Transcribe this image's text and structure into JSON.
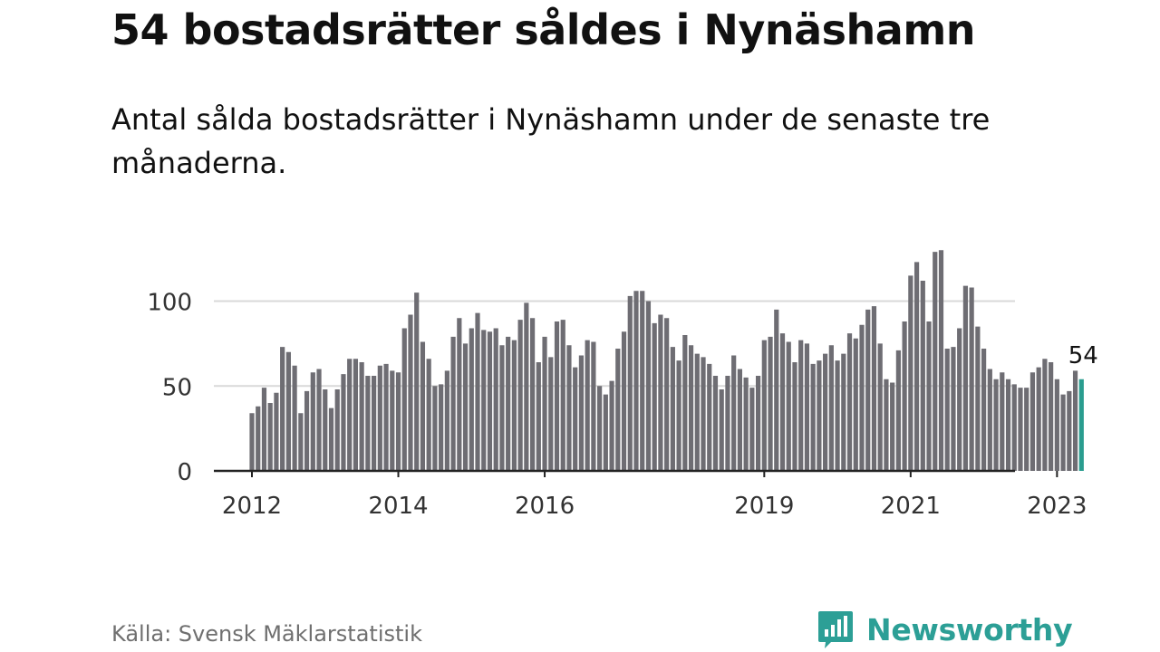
{
  "title": "54 bostadsrätter såldes i Nynäshamn",
  "subtitle": "Antal sålda bostadsrätter i Nynäshamn under de senaste tre månaderna.",
  "source": "Källa: Svensk Mäklarstatistik",
  "brand": {
    "name": "Newsworthy",
    "color": "#2c9f96",
    "icon": "newsworthy-logo-icon"
  },
  "colors": {
    "bar": "#6e6d73",
    "highlight": "#2a9d8f",
    "grid": "#d9d9d9",
    "axis": "#222222"
  },
  "chart_data": {
    "type": "bar",
    "title": "54 bostadsrätter såldes i Nynäshamn",
    "subtitle": "Antal sålda bostadsrätter i Nynäshamn under de senaste tre månaderna.",
    "xlabel": "",
    "ylabel": "",
    "ylim": [
      0,
      140
    ],
    "yticks": [
      0,
      50,
      100
    ],
    "grid": true,
    "legend": "none",
    "x_start": "2012-01",
    "interval": "monthly",
    "x_tick_labels": [
      {
        "label": "2012",
        "date": "2012-01"
      },
      {
        "label": "2014",
        "date": "2014-01"
      },
      {
        "label": "2016",
        "date": "2016-01"
      },
      {
        "label": "2019",
        "date": "2019-01"
      },
      {
        "label": "2021",
        "date": "2021-01"
      },
      {
        "label": "2023",
        "date": "2023-01"
      }
    ],
    "values": [
      34,
      38,
      49,
      40,
      46,
      73,
      70,
      62,
      34,
      47,
      58,
      60,
      48,
      37,
      48,
      57,
      66,
      66,
      64,
      56,
      56,
      62,
      63,
      59,
      58,
      84,
      92,
      105,
      76,
      66,
      50,
      51,
      59,
      79,
      90,
      75,
      84,
      93,
      83,
      82,
      84,
      74,
      79,
      77,
      89,
      99,
      90,
      64,
      79,
      67,
      88,
      89,
      74,
      61,
      68,
      77,
      76,
      50,
      45,
      53,
      72,
      82,
      103,
      106,
      106,
      100,
      87,
      92,
      90,
      73,
      65,
      80,
      74,
      69,
      67,
      63,
      56,
      48,
      56,
      68,
      60,
      55,
      49,
      56,
      77,
      79,
      95,
      81,
      76,
      64,
      77,
      75,
      63,
      65,
      69,
      74,
      65,
      69,
      81,
      78,
      86,
      95,
      97,
      75,
      54,
      52,
      71,
      88,
      115,
      123,
      112,
      88,
      129,
      130,
      72,
      73,
      84,
      109,
      108,
      85,
      72,
      60,
      54,
      58,
      54,
      51,
      49,
      49,
      58,
      61,
      66,
      64,
      54,
      45,
      47,
      59,
      54
    ],
    "highlight_last": true,
    "annotations": [
      {
        "text": "54",
        "target": "last_bar"
      }
    ]
  }
}
